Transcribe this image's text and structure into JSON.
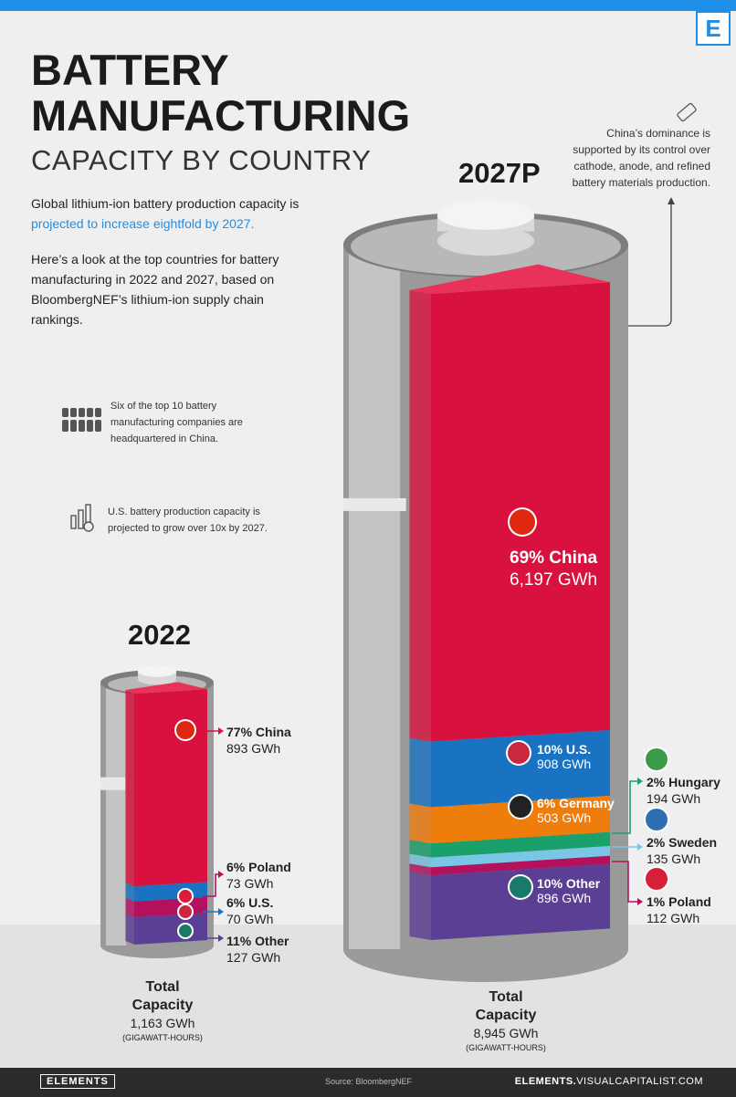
{
  "title_line1": "BATTERY",
  "title_line2": "MANUFACTURING",
  "subtitle": "CAPACITY BY COUNTRY",
  "intro_a": "Global lithium-ion battery production capacity is ",
  "intro_highlight": "projected to increase eightfold by 2027.",
  "intro2": "Here’s a look at the top countries for battery manufacturing in 2022 and 2027, based on BloombergNEF’s lithium-ion supply chain rankings.",
  "fact1": "Six of the top 10 battery manufacturing companies are headquartered in China.",
  "fact2": "U.S. battery production capacity is projected to grow over 10x by 2027.",
  "note": "China’s dominance is supported by its control over cathode, anode, and refined battery materials production.",
  "brand": "E",
  "footer": {
    "brand": "ELEMENTS",
    "source": "Source: BloombergNEF",
    "site_bold": "ELEMENTS.",
    "site_rest": "VISUALCAPITALIST.COM"
  },
  "colors": {
    "china": "#d8113e",
    "us": "#1a73c2",
    "germany": "#ef7d0c",
    "hungary": "#1aa06b",
    "sweden": "#7ac6e6",
    "poland": "#b3115e",
    "other": "#5b3f94",
    "accent": "#1f8ee6"
  },
  "chart_data": [
    {
      "type": "bar",
      "title": "2022",
      "categories": [
        "China",
        "Poland",
        "U.S.",
        "Other"
      ],
      "values": [
        893,
        73,
        70,
        127
      ],
      "percents": [
        77,
        6,
        6,
        11
      ],
      "unit": "GWh",
      "labels": [
        {
          "pct": "77% China",
          "gwh": "893 GWh"
        },
        {
          "pct": "6% Poland",
          "gwh": "73 GWh"
        },
        {
          "pct": "6% U.S.",
          "gwh": "70 GWh"
        },
        {
          "pct": "11% Other",
          "gwh": "127 GWh"
        }
      ],
      "total": {
        "l1": "Total",
        "l2": "Capacity",
        "value": "1,163 GWh",
        "unit": "(GIGAWATT-HOURS)"
      }
    },
    {
      "type": "bar",
      "title": "2027P",
      "categories": [
        "China",
        "U.S.",
        "Germany",
        "Hungary",
        "Sweden",
        "Poland",
        "Other"
      ],
      "values": [
        6197,
        908,
        503,
        194,
        135,
        112,
        896
      ],
      "percents": [
        69,
        10,
        6,
        2,
        2,
        1,
        10
      ],
      "unit": "GWh",
      "labels": [
        {
          "pct": "69% China",
          "gwh": "6,197 GWh"
        },
        {
          "pct": "10% U.S.",
          "gwh": "908 GWh"
        },
        {
          "pct": "6% Germany",
          "gwh": "503 GWh"
        },
        {
          "pct": "2% Hungary",
          "gwh": "194 GWh"
        },
        {
          "pct": "2% Sweden",
          "gwh": "135 GWh"
        },
        {
          "pct": "1% Poland",
          "gwh": "112 GWh"
        },
        {
          "pct": "10% Other",
          "gwh": "896 GWh"
        }
      ],
      "total": {
        "l1": "Total",
        "l2": "Capacity",
        "value": "8,945 GWh",
        "unit": "(GIGAWATT-HOURS)"
      }
    }
  ]
}
